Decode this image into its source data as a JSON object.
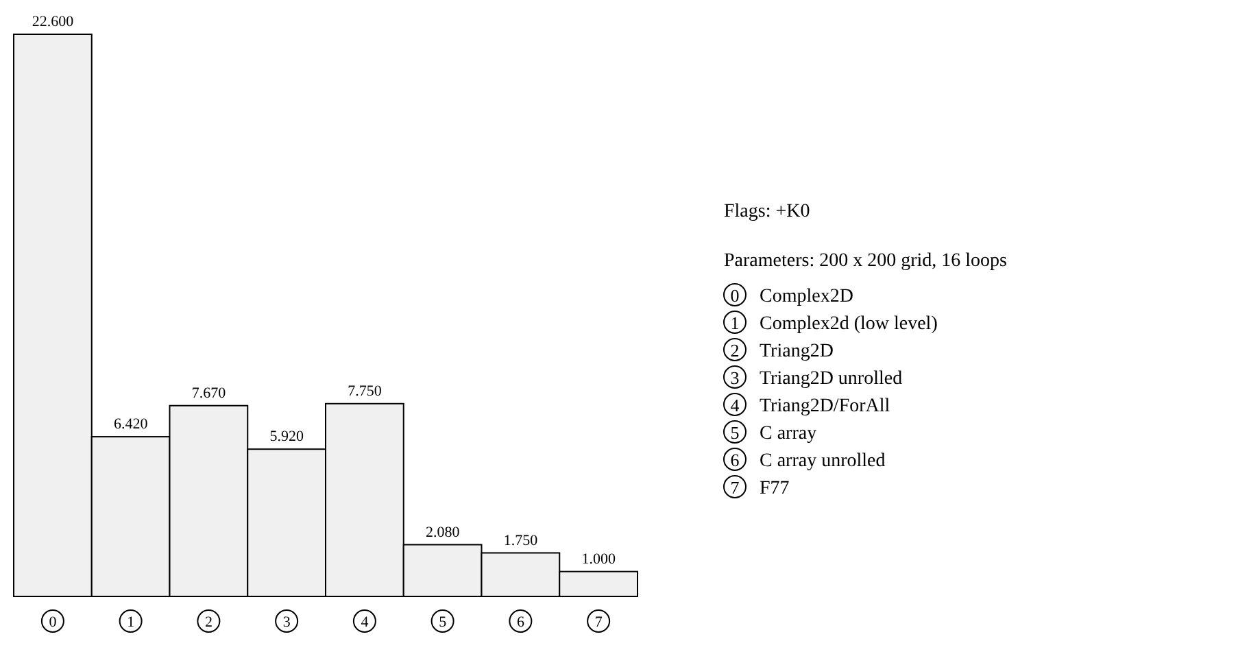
{
  "chart_data": {
    "type": "bar",
    "categories": [
      "0",
      "1",
      "2",
      "3",
      "4",
      "5",
      "6",
      "7"
    ],
    "values": [
      22.6,
      6.42,
      7.67,
      5.92,
      7.75,
      2.08,
      1.75,
      1.0
    ],
    "value_labels": [
      "22.600",
      "6.420",
      "7.670",
      "5.920",
      "7.750",
      "2.080",
      "1.750",
      "1.000"
    ],
    "color": "#f0f0f0",
    "annotations": [
      "Flags: +K0",
      "Parameters: 200 x 200 grid, 16 loops",
      "Complex2D",
      "Complex2d (low level)",
      "Triang2D",
      "Triang2D unrolled",
      "Triang2D/ForAll",
      "C array",
      "C array unrolled",
      "F77"
    ]
  }
}
